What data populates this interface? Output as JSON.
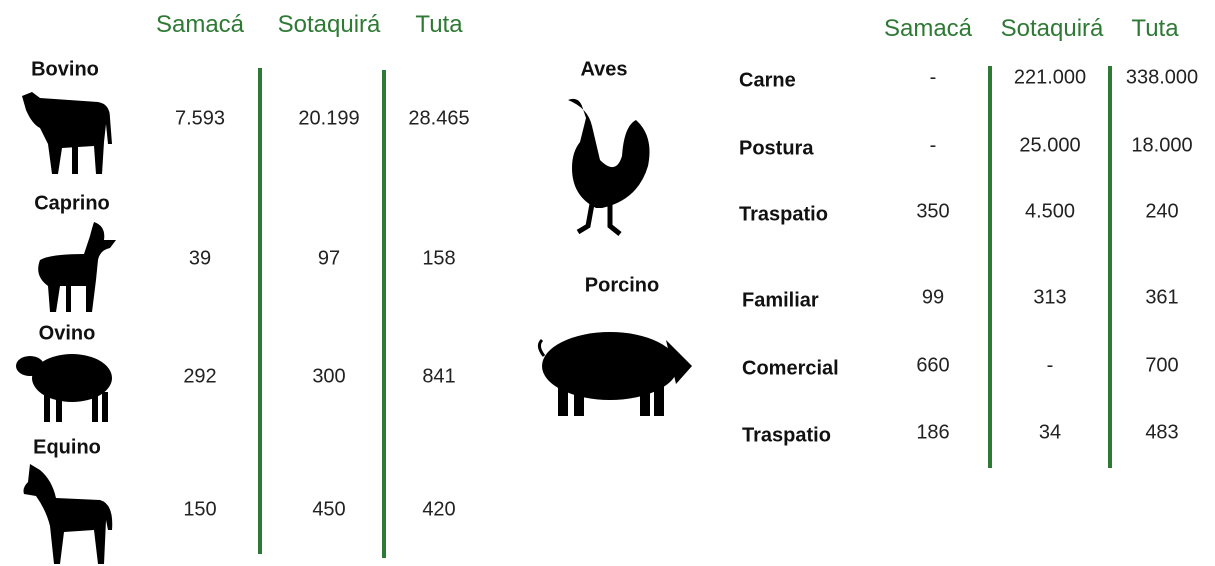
{
  "left": {
    "headers": [
      "Samacá",
      "Sotaquirá",
      "Tuta"
    ],
    "rows": [
      {
        "label": "Bovino",
        "values": [
          "7.593",
          "20.199",
          "28.465"
        ]
      },
      {
        "label": "Caprino",
        "values": [
          "39",
          "97",
          "158"
        ]
      },
      {
        "label": "Ovino",
        "values": [
          "292",
          "300",
          "841"
        ]
      },
      {
        "label": "Equino",
        "values": [
          "150",
          "450",
          "420"
        ]
      }
    ]
  },
  "right": {
    "headers": [
      "Samacá",
      "Sotaquirá",
      "Tuta"
    ],
    "groups": [
      {
        "label": "Aves",
        "rows": [
          {
            "label": "Carne",
            "values": [
              "-",
              "221.000",
              "338.000"
            ]
          },
          {
            "label": "Postura",
            "values": [
              "-",
              "25.000",
              "18.000"
            ]
          },
          {
            "label": "Traspatio",
            "values": [
              "350",
              "4.500",
              "240"
            ]
          }
        ]
      },
      {
        "label": "Porcino",
        "rows": [
          {
            "label": "Familiar",
            "values": [
              "99",
              "313",
              "361"
            ]
          },
          {
            "label": "Comercial",
            "values": [
              "660",
              "-",
              "700"
            ]
          },
          {
            "label": "Traspatio",
            "values": [
              "186",
              "34",
              "483"
            ]
          }
        ]
      }
    ]
  }
}
